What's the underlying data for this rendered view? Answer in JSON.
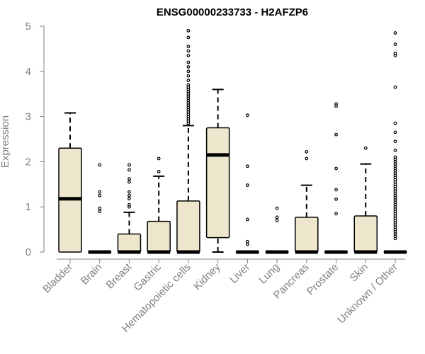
{
  "chart_data": {
    "type": "boxplot",
    "title": "ENSG00000233733 - H2AFZP6",
    "xlabel": "",
    "ylabel": "Expression",
    "ylim": [
      0,
      5
    ],
    "yticks": [
      0,
      1,
      2,
      3,
      4,
      5
    ],
    "grid": false,
    "legend": "none",
    "colors": {
      "box_fill": "#ede6cd",
      "box_stroke": "#000000",
      "axis": "#808080",
      "title": "#000000"
    },
    "categories": [
      "Bladder",
      "Brain",
      "Breast",
      "Gastric",
      "Hematopoietic cells",
      "Kidney",
      "Liver",
      "Lung",
      "Pancreas",
      "Prostate",
      "Skin",
      "Unknown / Other"
    ],
    "boxes": [
      {
        "name": "Bladder",
        "min": 0,
        "q1": 0,
        "median": 1.18,
        "q3": 2.3,
        "max": 3.08,
        "outliers": []
      },
      {
        "name": "Brain",
        "min": 0,
        "q1": 0,
        "median": 0,
        "q3": 0,
        "max": 0,
        "outliers": [
          0.9,
          0.97,
          1.25,
          1.33,
          1.93
        ]
      },
      {
        "name": "Breast",
        "min": 0,
        "q1": 0,
        "median": 0,
        "q3": 0.4,
        "max": 0.88,
        "outliers": [
          1.0,
          1.05,
          1.18,
          1.25,
          1.33,
          1.55,
          1.62,
          1.82,
          1.93
        ]
      },
      {
        "name": "Gastric",
        "min": 0,
        "q1": 0,
        "median": 0,
        "q3": 0.68,
        "max": 1.68,
        "outliers": [
          1.78,
          2.07
        ]
      },
      {
        "name": "Hematopoietic cells",
        "min": 0,
        "q1": 0,
        "median": 0,
        "q3": 1.13,
        "max": 2.8,
        "outliers": [
          2.85,
          2.9,
          2.95,
          3.0,
          3.05,
          3.1,
          3.15,
          3.2,
          3.25,
          3.3,
          3.35,
          3.4,
          3.45,
          3.5,
          3.55,
          3.6,
          3.65,
          3.7,
          3.8,
          3.9,
          4.0,
          4.1,
          4.2,
          4.35,
          4.45,
          4.55,
          4.75,
          4.9
        ]
      },
      {
        "name": "Kidney",
        "min": 0,
        "q1": 0.32,
        "median": 2.15,
        "q3": 2.75,
        "max": 3.6,
        "outliers": []
      },
      {
        "name": "Liver",
        "min": 0,
        "q1": 0,
        "median": 0,
        "q3": 0,
        "max": 0,
        "outliers": [
          0.17,
          0.23,
          0.72,
          1.48,
          1.9,
          3.03
        ]
      },
      {
        "name": "Lung",
        "min": 0,
        "q1": 0,
        "median": 0,
        "q3": 0,
        "max": 0,
        "outliers": [
          0.7,
          0.77,
          0.97
        ]
      },
      {
        "name": "Pancreas",
        "min": 0,
        "q1": 0,
        "median": 0,
        "q3": 0.77,
        "max": 1.48,
        "outliers": [
          2.07,
          2.22
        ]
      },
      {
        "name": "Prostate",
        "min": 0,
        "q1": 0,
        "median": 0,
        "q3": 0,
        "max": 0,
        "outliers": [
          0.85,
          1.17,
          1.38,
          1.85,
          2.6,
          3.23,
          3.28
        ]
      },
      {
        "name": "Skin",
        "min": 0,
        "q1": 0,
        "median": 0,
        "q3": 0.8,
        "max": 1.95,
        "outliers": [
          2.3
        ]
      },
      {
        "name": "Unknown / Other",
        "min": 0,
        "q1": 0,
        "median": 0,
        "q3": 0,
        "max": 0,
        "outliers": [
          0.3,
          0.35,
          0.4,
          0.45,
          0.5,
          0.55,
          0.6,
          0.65,
          0.7,
          0.75,
          0.8,
          0.85,
          0.9,
          0.95,
          1.0,
          1.05,
          1.1,
          1.15,
          1.2,
          1.25,
          1.3,
          1.35,
          1.4,
          1.45,
          1.5,
          1.55,
          1.6,
          1.65,
          1.7,
          1.75,
          1.8,
          1.85,
          1.9,
          1.95,
          2.0,
          2.05,
          2.1,
          2.25,
          2.45,
          2.65,
          2.85,
          3.65,
          4.35,
          4.4,
          4.6,
          4.85
        ]
      }
    ]
  }
}
